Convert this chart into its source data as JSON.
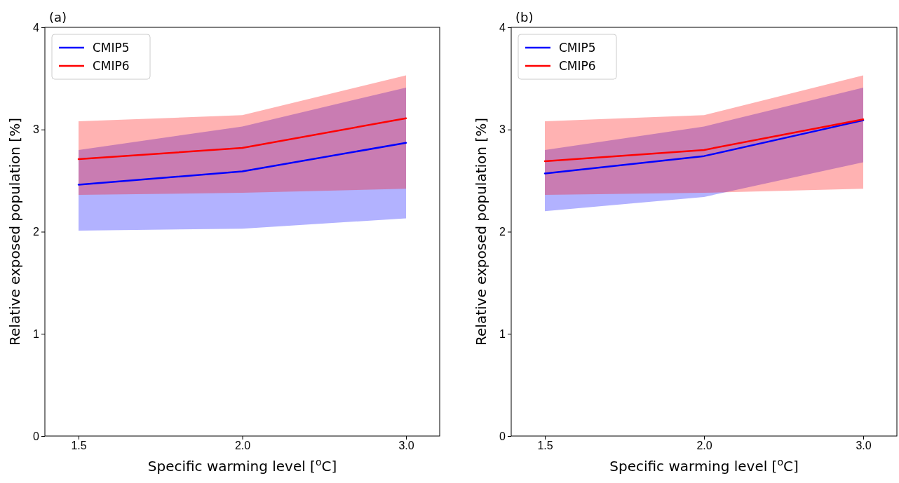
{
  "chart_data": [
    {
      "type": "line",
      "title": "(a)",
      "xlabel": "Specific warming level [$^{o}$C]",
      "ylabel": "Relative exposed population [%]",
      "categories": [
        "1.5",
        "2.0",
        "3.0"
      ],
      "ylim": [
        0,
        4
      ],
      "yticks": [
        0,
        1,
        2,
        3,
        4
      ],
      "legend": "top left",
      "grid": false,
      "series": [
        {
          "name": "CMIP5",
          "color": "#0000ff",
          "values": [
            2.46,
            2.59,
            2.87
          ],
          "lower": [
            2.01,
            2.03,
            2.13
          ],
          "upper": [
            2.8,
            3.03,
            3.41
          ]
        },
        {
          "name": "CMIP6",
          "color": "#ff0000",
          "values": [
            2.71,
            2.82,
            3.11
          ],
          "lower": [
            2.36,
            2.38,
            2.42
          ],
          "upper": [
            3.08,
            3.14,
            3.53
          ]
        }
      ]
    },
    {
      "type": "line",
      "title": "(b)",
      "xlabel": "Specific warming level [$^{o}$C]",
      "ylabel": "Relative exposed population [%]",
      "categories": [
        "1.5",
        "2.0",
        "3.0"
      ],
      "ylim": [
        0,
        4
      ],
      "yticks": [
        0,
        1,
        2,
        3,
        4
      ],
      "legend": "top left",
      "grid": false,
      "series": [
        {
          "name": "CMIP5",
          "color": "#0000ff",
          "values": [
            2.57,
            2.74,
            3.09
          ],
          "lower": [
            2.2,
            2.34,
            2.68
          ],
          "upper": [
            2.8,
            3.03,
            3.41
          ]
        },
        {
          "name": "CMIP6",
          "color": "#ff0000",
          "values": [
            2.69,
            2.8,
            3.1
          ],
          "lower": [
            2.36,
            2.38,
            2.42
          ],
          "upper": [
            3.08,
            3.14,
            3.53
          ]
        }
      ]
    }
  ]
}
